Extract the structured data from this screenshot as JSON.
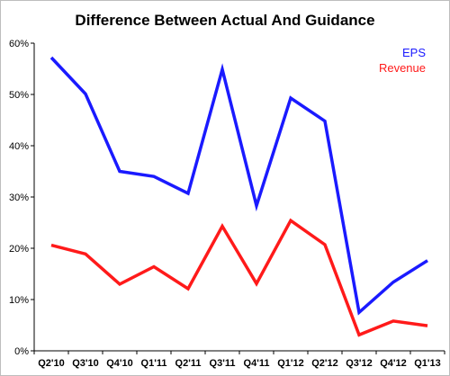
{
  "chart_data": {
    "type": "line",
    "title": "Difference Between Actual And Guidance",
    "xlabel": "",
    "ylabel": "",
    "categories": [
      "Q2'10",
      "Q3'10",
      "Q4'10",
      "Q1'11",
      "Q2'11",
      "Q3'11",
      "Q4'11",
      "Q1'12",
      "Q2'12",
      "Q3'12",
      "Q4'12",
      "Q1'13"
    ],
    "series": [
      {
        "name": "EPS",
        "color": "#1a1aff",
        "values": [
          57.2,
          50.1,
          35.0,
          34.0,
          30.7,
          54.9,
          28.3,
          49.3,
          44.8,
          7.5,
          13.4,
          17.6
        ]
      },
      {
        "name": "Revenue",
        "color": "#ff1a1a",
        "values": [
          20.6,
          18.9,
          13.0,
          16.4,
          12.1,
          24.3,
          13.1,
          25.4,
          20.7,
          3.1,
          5.8,
          4.9
        ]
      }
    ],
    "ylim": [
      0,
      60
    ],
    "yticks": [
      0,
      10,
      20,
      30,
      40,
      50,
      60
    ],
    "ytick_labels": [
      "0%",
      "10%",
      "20%",
      "30%",
      "40%",
      "50%",
      "60%"
    ],
    "grid": false,
    "legend_position": "top-right"
  }
}
